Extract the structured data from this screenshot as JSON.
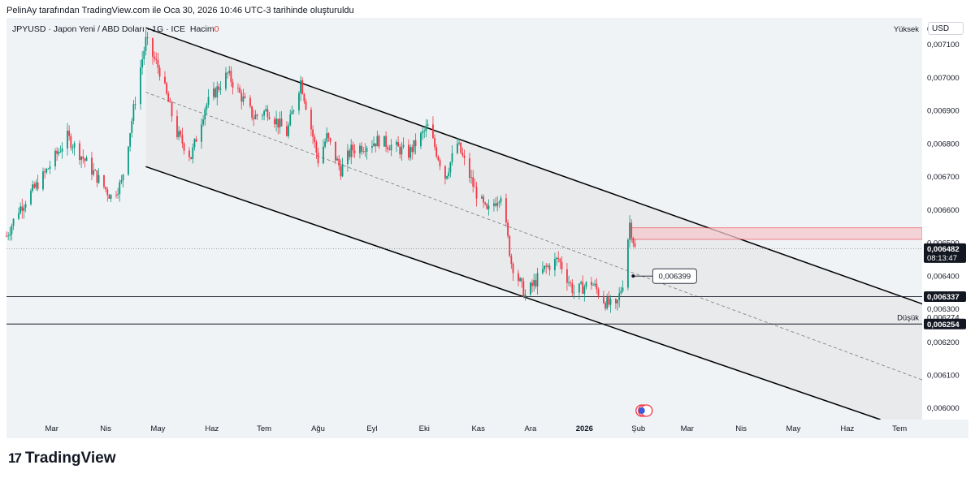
{
  "attribution": "PelinAy tarafından TradingView.com ile Oca 30, 2026 10:46 UTC-3 tarihinde oluşturuldu",
  "legend": {
    "symbol": "JPYUSD · Japon Yeni / ABD Doları · 1G · ICE",
    "volume_label": "Hacim",
    "volume_value": "0"
  },
  "currency": "USD",
  "brand": {
    "name": "TradingView",
    "mark": "17"
  },
  "events_icon": "us-flag-icon",
  "colors": {
    "up": "#089981",
    "down": "#f23645",
    "channel_fill": "#e7e8ea",
    "zone": "#f5c9cc",
    "zone_border": "#f23645"
  },
  "chart_data": {
    "type": "candlestick",
    "symbol": "JPYUSD",
    "interval": "1G",
    "y_axis": {
      "ticks": [
        "0,006000",
        "0,006100",
        "0,006200",
        "0,006300",
        "0,006400",
        "0,006500",
        "0,006600",
        "0,006700",
        "0,006800",
        "0,006900",
        "0,007000",
        "0,007100"
      ],
      "tick_values": [
        0.006,
        0.0061,
        0.0062,
        0.0063,
        0.0064,
        0.0065,
        0.0066,
        0.0067,
        0.0068,
        0.0069,
        0.007,
        0.0071
      ],
      "range": [
        0.005965,
        0.00718
      ]
    },
    "x_axis": {
      "ticks": [
        "Mar",
        "Nis",
        "May",
        "Haz",
        "Tem",
        "Ağu",
        "Eyl",
        "Eki",
        "Kas",
        "Ara",
        "2026",
        "Şub",
        "Mar",
        "Nis",
        "May",
        "Haz",
        "Tem"
      ],
      "tick_dates": [
        "2025-03-01",
        "2025-04-01",
        "2025-05-01",
        "2025-06-01",
        "2025-07-01",
        "2025-08-01",
        "2025-09-01",
        "2025-10-01",
        "2025-11-01",
        "2025-12-01",
        "2026-01-01",
        "2026-02-01",
        "2026-03-01",
        "2026-04-01",
        "2026-05-01",
        "2026-06-01",
        "2026-07-01"
      ],
      "range": [
        "2025-02-03",
        "2026-07-14"
      ]
    },
    "price_labels": {
      "high": {
        "label": "Yüksek",
        "value": "0,007147",
        "y": 0.007147
      },
      "last": {
        "value": "0,006482",
        "countdown": "08:13:47",
        "y": 0.006482
      },
      "level_1": {
        "value": "0,006337",
        "y": 0.006337
      },
      "low": {
        "label": "Düşük",
        "value": "0,006274",
        "y": 0.006274
      },
      "level_2": {
        "value": "0,006254",
        "y": 0.006254
      }
    },
    "annotation": {
      "text": "0,006399",
      "date": "2026-01-29",
      "y": 0.006399
    },
    "channel": {
      "upper": {
        "from": [
          "2025-04-24",
          0.00715
        ],
        "to": [
          "2026-07-14",
          0.006315
        ]
      },
      "mid": {
        "from": [
          "2025-04-24",
          0.006955
        ],
        "to": [
          "2026-07-14",
          0.006085
        ]
      },
      "lower": {
        "from": [
          "2025-04-24",
          0.00673
        ],
        "to": [
          "2026-06-20",
          0.005965
        ]
      }
    },
    "zone": {
      "from": "2026-01-27",
      "to": "2026-07-14",
      "top": 0.006545,
      "bottom": 0.00651
    },
    "swing_points": [
      [
        "2025-02-03",
        0.00652
      ],
      [
        "2025-02-10",
        0.0066
      ],
      [
        "2025-02-24",
        0.0067
      ],
      [
        "2025-03-10",
        0.00682
      ],
      [
        "2025-03-24",
        0.00672
      ],
      [
        "2025-04-04",
        0.00664
      ],
      [
        "2025-04-10",
        0.00668
      ],
      [
        "2025-04-21",
        0.00703
      ],
      [
        "2025-04-24",
        0.00711
      ],
      [
        "2025-05-02",
        0.00702
      ],
      [
        "2025-05-12",
        0.00683
      ],
      [
        "2025-05-20",
        0.00676
      ],
      [
        "2025-05-28",
        0.00691
      ],
      [
        "2025-06-10",
        0.00701
      ],
      [
        "2025-06-25",
        0.00688
      ],
      [
        "2025-07-03",
        0.0069
      ],
      [
        "2025-07-14",
        0.00683
      ],
      [
        "2025-07-22",
        0.00699
      ],
      [
        "2025-08-01",
        0.00675
      ],
      [
        "2025-08-06",
        0.00682
      ],
      [
        "2025-08-14",
        0.00672
      ],
      [
        "2025-08-20",
        0.00678
      ],
      [
        "2025-09-05",
        0.00681
      ],
      [
        "2025-09-22",
        0.00677
      ],
      [
        "2025-10-03",
        0.00685
      ],
      [
        "2025-10-13",
        0.0067
      ],
      [
        "2025-10-20",
        0.0068
      ],
      [
        "2025-10-30",
        0.00666
      ],
      [
        "2025-11-06",
        0.00659
      ],
      [
        "2025-11-14",
        0.00665
      ],
      [
        "2025-11-20",
        0.00644
      ],
      [
        "2025-11-28",
        0.00634
      ],
      [
        "2025-12-09",
        0.00642
      ],
      [
        "2025-12-17",
        0.00645
      ],
      [
        "2025-12-26",
        0.00635
      ],
      [
        "2026-01-05",
        0.00638
      ],
      [
        "2026-01-13",
        0.00632
      ],
      [
        "2026-01-19",
        0.0063
      ],
      [
        "2026-01-23",
        0.00638
      ],
      [
        "2026-01-27",
        0.00656
      ],
      [
        "2026-01-30",
        0.006482
      ]
    ]
  }
}
